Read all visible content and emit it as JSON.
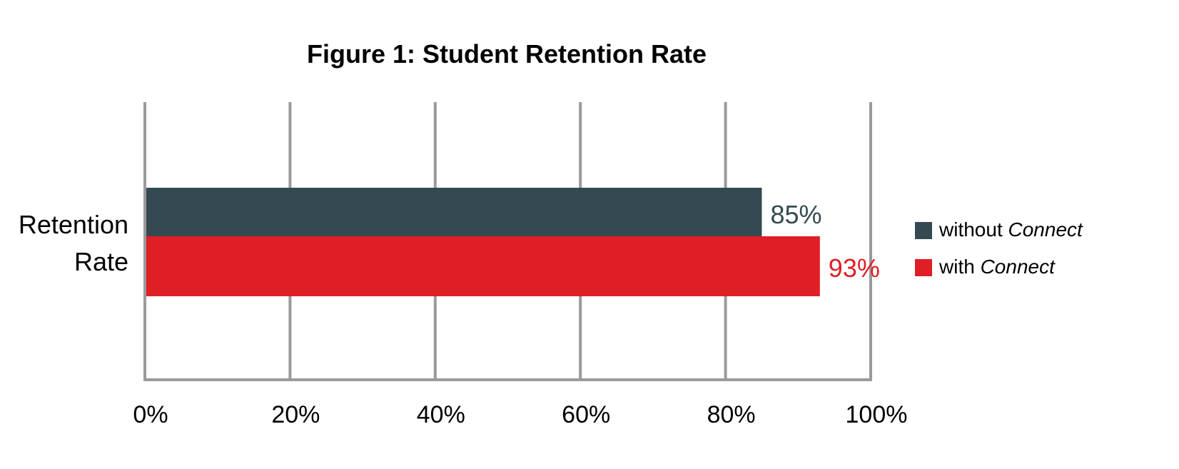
{
  "chart_data": {
    "type": "bar",
    "orientation": "horizontal",
    "title": "Figure 1: Student Retention Rate",
    "xlabel": "",
    "ylabel": "",
    "categories": [
      "Retention Rate"
    ],
    "category_label_lines": [
      "Retention",
      "Rate"
    ],
    "series": [
      {
        "name_prefix": "without ",
        "name_emphasis": "Connect",
        "values": [
          85
        ],
        "value_labels": [
          "85%"
        ],
        "color": "#344a50",
        "label_color": "#344a50"
      },
      {
        "name_prefix": "with ",
        "name_emphasis": "Connect",
        "values": [
          93
        ],
        "value_labels": [
          "93%"
        ],
        "color": "#e01e25",
        "label_color": "#e01e25"
      }
    ],
    "xlim": [
      0,
      100
    ],
    "xticks": [
      0,
      20,
      40,
      60,
      80,
      100
    ],
    "xtick_labels": [
      "0%",
      "20%",
      "40%",
      "60%",
      "80%",
      "100%"
    ],
    "grid": true,
    "grid_color": "#9a9a9c",
    "legend_position": "right"
  }
}
